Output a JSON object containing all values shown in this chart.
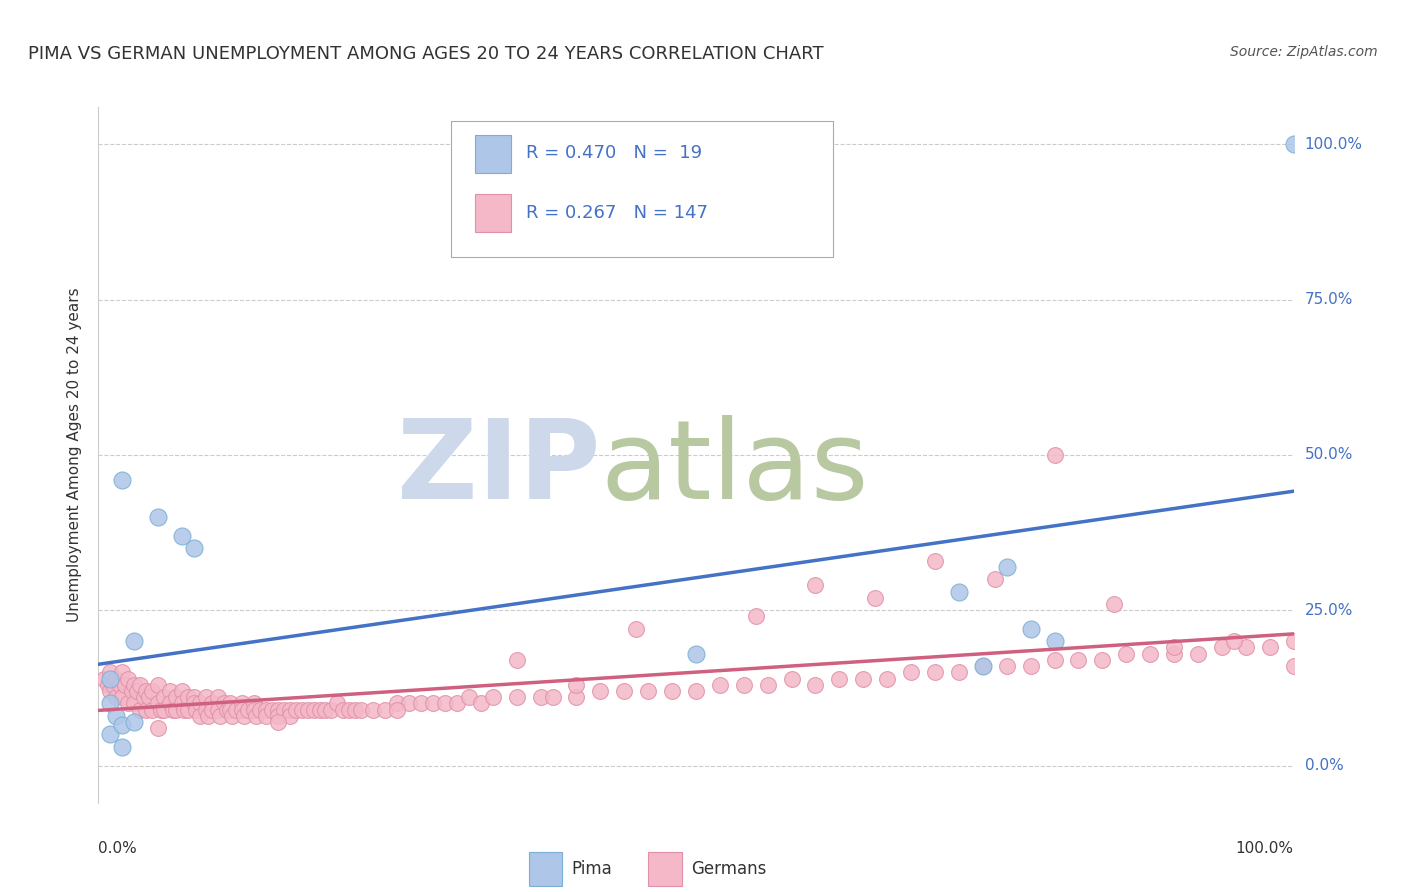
{
  "title": "PIMA VS GERMAN UNEMPLOYMENT AMONG AGES 20 TO 24 YEARS CORRELATION CHART",
  "source": "Source: ZipAtlas.com",
  "ylabel": "Unemployment Among Ages 20 to 24 years",
  "ytick_labels": [
    "0.0%",
    "25.0%",
    "50.0%",
    "75.0%",
    "100.0%"
  ],
  "ytick_values": [
    0.0,
    0.25,
    0.5,
    0.75,
    1.0
  ],
  "xlim": [
    0.0,
    1.0
  ],
  "ylim": [
    -0.06,
    1.06
  ],
  "pima_color": "#aec6e8",
  "pima_edge_color": "#7bafd4",
  "pima_line_color": "#4472c4",
  "german_color": "#f4b8c8",
  "german_edge_color": "#e090a8",
  "german_line_color": "#d06080",
  "pima_R": 0.47,
  "pima_N": 19,
  "german_R": 0.267,
  "german_N": 147,
  "legend_label_pima": "Pima",
  "legend_label_german": "Germans",
  "pima_scatter_x": [
    0.02,
    0.05,
    0.07,
    0.08,
    0.03,
    0.01,
    0.01,
    0.015,
    0.01,
    0.02,
    0.5,
    0.72,
    0.74,
    0.76,
    0.78,
    0.8,
    1.0,
    0.02,
    0.03
  ],
  "pima_scatter_y": [
    0.46,
    0.4,
    0.37,
    0.35,
    0.2,
    0.14,
    0.1,
    0.08,
    0.05,
    0.03,
    0.18,
    0.28,
    0.16,
    0.32,
    0.22,
    0.2,
    1.0,
    0.065,
    0.07
  ],
  "german_scatter_x": [
    0.005,
    0.008,
    0.01,
    0.01,
    0.012,
    0.015,
    0.015,
    0.018,
    0.02,
    0.02,
    0.022,
    0.025,
    0.025,
    0.028,
    0.03,
    0.03,
    0.032,
    0.035,
    0.035,
    0.038,
    0.04,
    0.04,
    0.042,
    0.045,
    0.045,
    0.05,
    0.05,
    0.052,
    0.055,
    0.055,
    0.06,
    0.06,
    0.062,
    0.065,
    0.065,
    0.07,
    0.07,
    0.072,
    0.075,
    0.075,
    0.08,
    0.08,
    0.082,
    0.085,
    0.085,
    0.09,
    0.09,
    0.092,
    0.095,
    0.095,
    0.1,
    0.1,
    0.102,
    0.105,
    0.108,
    0.11,
    0.11,
    0.112,
    0.115,
    0.12,
    0.12,
    0.122,
    0.125,
    0.13,
    0.13,
    0.132,
    0.135,
    0.14,
    0.14,
    0.145,
    0.15,
    0.15,
    0.155,
    0.16,
    0.16,
    0.165,
    0.17,
    0.175,
    0.18,
    0.185,
    0.19,
    0.195,
    0.2,
    0.205,
    0.21,
    0.215,
    0.22,
    0.23,
    0.24,
    0.25,
    0.26,
    0.27,
    0.28,
    0.29,
    0.3,
    0.31,
    0.32,
    0.33,
    0.35,
    0.37,
    0.38,
    0.4,
    0.42,
    0.44,
    0.46,
    0.48,
    0.5,
    0.52,
    0.54,
    0.56,
    0.58,
    0.6,
    0.62,
    0.64,
    0.66,
    0.68,
    0.7,
    0.72,
    0.74,
    0.76,
    0.78,
    0.8,
    0.82,
    0.84,
    0.86,
    0.88,
    0.9,
    0.92,
    0.94,
    0.96,
    0.98,
    1.0,
    0.55,
    0.65,
    0.75,
    0.85,
    0.95,
    0.45,
    0.35,
    0.25,
    0.15,
    0.05,
    0.6,
    0.7,
    0.8,
    0.9,
    1.0,
    0.4
  ],
  "german_scatter_y": [
    0.14,
    0.13,
    0.15,
    0.12,
    0.13,
    0.14,
    0.11,
    0.13,
    0.15,
    0.11,
    0.13,
    0.14,
    0.1,
    0.12,
    0.13,
    0.1,
    0.12,
    0.13,
    0.09,
    0.11,
    0.12,
    0.09,
    0.11,
    0.12,
    0.09,
    0.13,
    0.1,
    0.09,
    0.11,
    0.09,
    0.12,
    0.1,
    0.09,
    0.11,
    0.09,
    0.12,
    0.1,
    0.09,
    0.11,
    0.09,
    0.11,
    0.1,
    0.09,
    0.1,
    0.08,
    0.11,
    0.09,
    0.08,
    0.1,
    0.09,
    0.11,
    0.09,
    0.08,
    0.1,
    0.09,
    0.1,
    0.09,
    0.08,
    0.09,
    0.1,
    0.09,
    0.08,
    0.09,
    0.1,
    0.09,
    0.08,
    0.09,
    0.09,
    0.08,
    0.09,
    0.09,
    0.08,
    0.09,
    0.09,
    0.08,
    0.09,
    0.09,
    0.09,
    0.09,
    0.09,
    0.09,
    0.09,
    0.1,
    0.09,
    0.09,
    0.09,
    0.09,
    0.09,
    0.09,
    0.1,
    0.1,
    0.1,
    0.1,
    0.1,
    0.1,
    0.11,
    0.1,
    0.11,
    0.11,
    0.11,
    0.11,
    0.11,
    0.12,
    0.12,
    0.12,
    0.12,
    0.12,
    0.13,
    0.13,
    0.13,
    0.14,
    0.13,
    0.14,
    0.14,
    0.14,
    0.15,
    0.15,
    0.15,
    0.16,
    0.16,
    0.16,
    0.17,
    0.17,
    0.17,
    0.18,
    0.18,
    0.18,
    0.18,
    0.19,
    0.19,
    0.19,
    0.2,
    0.24,
    0.27,
    0.3,
    0.26,
    0.2,
    0.22,
    0.17,
    0.09,
    0.07,
    0.06,
    0.29,
    0.33,
    0.5,
    0.19,
    0.16,
    0.13
  ]
}
